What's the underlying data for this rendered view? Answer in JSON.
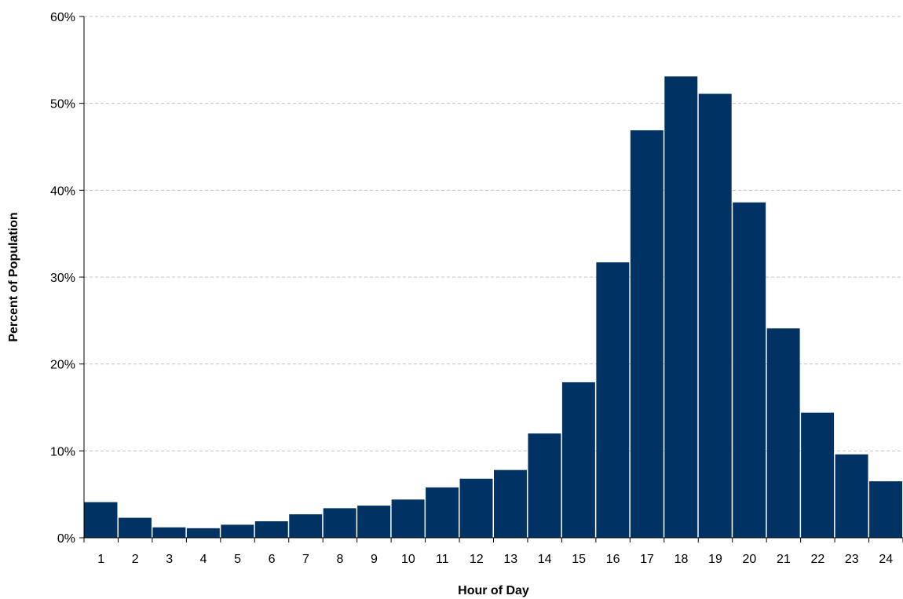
{
  "colors": {
    "bar": "#003263",
    "gridline": "#c0c0c0",
    "axis": "#000000"
  },
  "chart_data": {
    "type": "bar",
    "title": "",
    "xlabel": "Hour of Day",
    "ylabel": "Percent of Population",
    "categories": [
      "1",
      "2",
      "3",
      "4",
      "5",
      "6",
      "7",
      "8",
      "9",
      "10",
      "11",
      "12",
      "13",
      "14",
      "15",
      "16",
      "17",
      "18",
      "19",
      "20",
      "21",
      "22",
      "23",
      "24"
    ],
    "values": [
      4.1,
      2.3,
      1.2,
      1.1,
      1.5,
      1.9,
      2.7,
      3.4,
      3.7,
      4.4,
      5.8,
      6.8,
      7.8,
      12.0,
      17.9,
      31.7,
      46.9,
      53.1,
      51.1,
      38.6,
      24.1,
      14.4,
      9.6,
      6.5
    ],
    "ylim": [
      0,
      60
    ],
    "yticks": [
      0,
      10,
      20,
      30,
      40,
      50,
      60
    ],
    "ytick_labels": [
      "0%",
      "10%",
      "20%",
      "30%",
      "40%",
      "50%",
      "60%"
    ],
    "value_unit": "percent",
    "grid": "horizontal dashed",
    "legend": "none"
  }
}
